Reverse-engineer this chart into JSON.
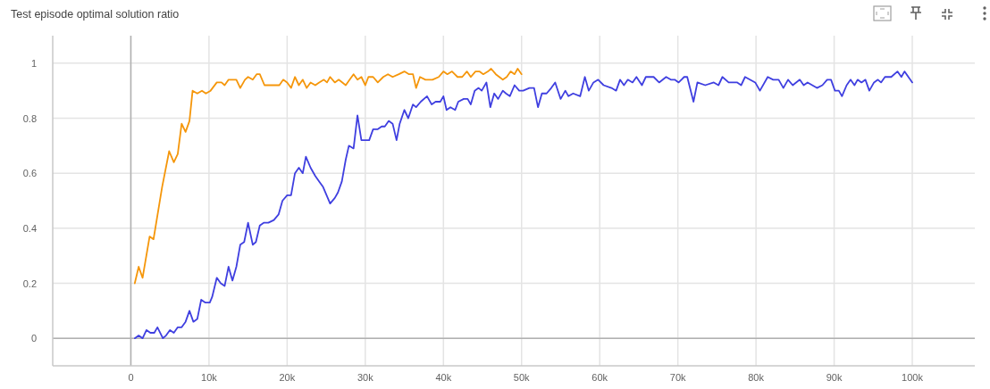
{
  "chart_data": {
    "type": "line",
    "title": "Test episode optimal solution ratio",
    "xlim": [
      -10000,
      108000
    ],
    "ylim": [
      -0.1,
      1.1
    ],
    "xticks": [
      0,
      {
        "value": 10000,
        "label": "10k"
      },
      {
        "value": 20000,
        "label": "20k"
      },
      {
        "value": 30000,
        "label": "30k"
      },
      {
        "value": 40000,
        "label": "40k"
      },
      {
        "value": 50000,
        "label": "50k"
      },
      {
        "value": 60000,
        "label": "60k"
      },
      {
        "value": 70000,
        "label": "70k"
      },
      {
        "value": 80000,
        "label": "80k"
      },
      {
        "value": 90000,
        "label": "90k"
      },
      {
        "value": 100000,
        "label": "100k"
      }
    ],
    "yticks": [
      0,
      0.2,
      0.4,
      0.6,
      0.8,
      1
    ],
    "grid": true,
    "marker": "none",
    "line_style": "solid",
    "series": [
      {
        "color": "#f5960a",
        "x": [
          500,
          1000,
          1500,
          2400,
          2900,
          4000,
          4900,
          5500,
          6000,
          6500,
          7000,
          7500,
          7900,
          8500,
          9100,
          9600,
          10200,
          11000,
          11600,
          12000,
          12500,
          13500,
          14000,
          14600,
          15000,
          15600,
          16100,
          16500,
          17100,
          17900,
          18600,
          19000,
          19500,
          20000,
          20500,
          21000,
          21500,
          22000,
          22500,
          23000,
          23600,
          24100,
          24700,
          25100,
          25500,
          26100,
          26600,
          27500,
          28000,
          28500,
          29000,
          29500,
          30000,
          30400,
          31000,
          31600,
          32300,
          32900,
          33500,
          34300,
          35000,
          35600,
          36100,
          36500,
          37000,
          37700,
          38600,
          39400,
          40000,
          40500,
          41100,
          41800,
          42400,
          43000,
          43500,
          44100,
          44600,
          45100,
          45700,
          46100,
          46700,
          47600,
          48100,
          48600,
          49100,
          49500,
          50000
        ],
        "values": [
          0.2,
          0.26,
          0.22,
          0.37,
          0.36,
          0.55,
          0.68,
          0.64,
          0.67,
          0.78,
          0.75,
          0.79,
          0.9,
          0.89,
          0.9,
          0.89,
          0.9,
          0.93,
          0.93,
          0.92,
          0.94,
          0.94,
          0.91,
          0.94,
          0.95,
          0.94,
          0.96,
          0.96,
          0.92,
          0.92,
          0.92,
          0.92,
          0.94,
          0.93,
          0.91,
          0.95,
          0.92,
          0.94,
          0.91,
          0.93,
          0.92,
          0.93,
          0.94,
          0.93,
          0.95,
          0.93,
          0.94,
          0.92,
          0.94,
          0.96,
          0.94,
          0.95,
          0.92,
          0.95,
          0.95,
          0.93,
          0.95,
          0.96,
          0.95,
          0.96,
          0.97,
          0.96,
          0.96,
          0.91,
          0.95,
          0.94,
          0.94,
          0.95,
          0.97,
          0.96,
          0.97,
          0.95,
          0.95,
          0.97,
          0.95,
          0.97,
          0.97,
          0.96,
          0.97,
          0.98,
          0.96,
          0.94,
          0.95,
          0.97,
          0.96,
          0.98,
          0.96
        ]
      },
      {
        "color": "#3f3fe0",
        "x": [
          500,
          1000,
          1500,
          2000,
          2500,
          3000,
          3400,
          4100,
          4500,
          5000,
          5500,
          6000,
          6500,
          7000,
          7500,
          8000,
          8500,
          9000,
          9500,
          10100,
          10400,
          11000,
          11500,
          12000,
          12500,
          13000,
          13500,
          14000,
          14500,
          15000,
          15600,
          16000,
          16500,
          17000,
          17600,
          18300,
          18900,
          19400,
          20000,
          20500,
          21000,
          21500,
          22000,
          22400,
          23000,
          23600,
          24100,
          24600,
          25500,
          26100,
          26500,
          27000,
          27500,
          27900,
          28500,
          29000,
          29500,
          30000,
          30500,
          31000,
          31600,
          32100,
          32500,
          33000,
          33500,
          34000,
          34400,
          35000,
          35500,
          36100,
          36500,
          37100,
          37900,
          38500,
          39000,
          39600,
          40000,
          40400,
          40900,
          41500,
          41900,
          42600,
          43100,
          43500,
          44000,
          44500,
          44900,
          45500,
          46000,
          46500,
          47000,
          47600,
          48000,
          48500,
          49100,
          49700,
          50200,
          51000,
          51600,
          52100,
          52600,
          53200,
          53800,
          54300,
          55000,
          55600,
          56000,
          56600,
          57500,
          58100,
          58600,
          59200,
          59800,
          60500,
          61500,
          62100,
          62600,
          63100,
          63600,
          64200,
          64700,
          65400,
          65900,
          66300,
          66900,
          67600,
          68500,
          69100,
          69600,
          70100,
          70800,
          71200,
          72000,
          72500,
          73500,
          74600,
          75200,
          75700,
          76500,
          77600,
          78100,
          78600,
          79900,
          80500,
          81500,
          82200,
          82900,
          83500,
          84100,
          84700,
          85600,
          86100,
          86600,
          87800,
          88500,
          89100,
          89600,
          90100,
          90600,
          91000,
          91600,
          92100,
          92600,
          93000,
          93500,
          94000,
          94500,
          95100,
          95600,
          96000,
          96500,
          97300,
          98100,
          98600,
          99000,
          100000
        ],
        "values": [
          0,
          0.01,
          0,
          0.03,
          0.02,
          0.02,
          0.04,
          0,
          0.01,
          0.03,
          0.02,
          0.04,
          0.04,
          0.06,
          0.1,
          0.06,
          0.07,
          0.14,
          0.13,
          0.13,
          0.15,
          0.22,
          0.2,
          0.19,
          0.26,
          0.21,
          0.26,
          0.34,
          0.35,
          0.42,
          0.34,
          0.35,
          0.41,
          0.42,
          0.42,
          0.43,
          0.45,
          0.5,
          0.52,
          0.52,
          0.6,
          0.62,
          0.6,
          0.66,
          0.62,
          0.59,
          0.57,
          0.55,
          0.49,
          0.51,
          0.53,
          0.57,
          0.65,
          0.7,
          0.69,
          0.81,
          0.72,
          0.72,
          0.72,
          0.76,
          0.76,
          0.77,
          0.77,
          0.79,
          0.78,
          0.72,
          0.78,
          0.83,
          0.8,
          0.85,
          0.84,
          0.86,
          0.88,
          0.85,
          0.86,
          0.86,
          0.88,
          0.83,
          0.84,
          0.83,
          0.86,
          0.87,
          0.87,
          0.85,
          0.9,
          0.91,
          0.9,
          0.93,
          0.84,
          0.89,
          0.87,
          0.9,
          0.89,
          0.88,
          0.92,
          0.9,
          0.9,
          0.91,
          0.91,
          0.84,
          0.89,
          0.89,
          0.91,
          0.93,
          0.87,
          0.9,
          0.88,
          0.89,
          0.88,
          0.95,
          0.9,
          0.93,
          0.94,
          0.92,
          0.91,
          0.9,
          0.94,
          0.92,
          0.94,
          0.93,
          0.95,
          0.92,
          0.95,
          0.95,
          0.95,
          0.93,
          0.95,
          0.94,
          0.94,
          0.93,
          0.95,
          0.95,
          0.86,
          0.93,
          0.92,
          0.93,
          0.92,
          0.95,
          0.93,
          0.93,
          0.92,
          0.95,
          0.93,
          0.9,
          0.95,
          0.94,
          0.94,
          0.91,
          0.94,
          0.92,
          0.94,
          0.92,
          0.93,
          0.91,
          0.92,
          0.94,
          0.94,
          0.9,
          0.9,
          0.88,
          0.92,
          0.94,
          0.92,
          0.94,
          0.93,
          0.94,
          0.9,
          0.93,
          0.94,
          0.93,
          0.95,
          0.95,
          0.97,
          0.95,
          0.97,
          0.93
        ]
      }
    ]
  }
}
